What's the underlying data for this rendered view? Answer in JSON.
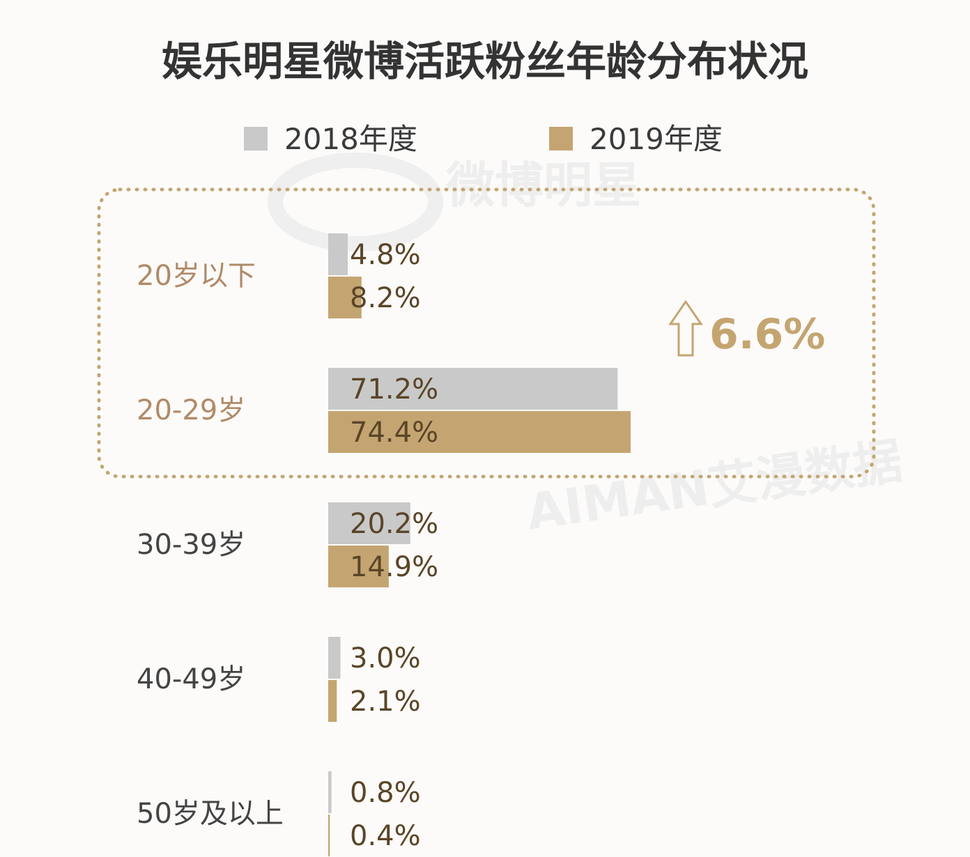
{
  "chart_data": {
    "type": "bar",
    "orientation": "horizontal",
    "title": "娱乐明星微博活跃粉丝年龄分布状况",
    "categories": [
      "20岁以下",
      "20-29岁",
      "30-39岁",
      "40-49岁",
      "50岁及以上"
    ],
    "series": [
      {
        "name": "2018年度",
        "color": "#c9c9c9",
        "values": [
          4.8,
          71.2,
          20.2,
          3.0,
          0.8
        ],
        "labels": [
          "4.8%",
          "71.2%",
          "20.2%",
          "3.0%",
          "0.8%"
        ]
      },
      {
        "name": "2019年度",
        "color": "#c4a571",
        "values": [
          8.2,
          74.4,
          14.9,
          2.1,
          0.4
        ],
        "labels": [
          "8.2%",
          "74.4%",
          "14.9%",
          "2.1%",
          "0.4%"
        ]
      }
    ],
    "highlighted_categories": [
      "20岁以下",
      "20-29岁"
    ],
    "highlight_label_color": "#b08a68",
    "category_label_color": "#444444",
    "callout": {
      "text": "6.6%",
      "icon": "up-arrow-icon",
      "color": "#c4a571"
    },
    "xlim": [
      0,
      80
    ],
    "legend_position": "top",
    "grid": false
  },
  "watermarks": {
    "top": "微博明星",
    "bottom": "AIMAN艾漫数据"
  }
}
